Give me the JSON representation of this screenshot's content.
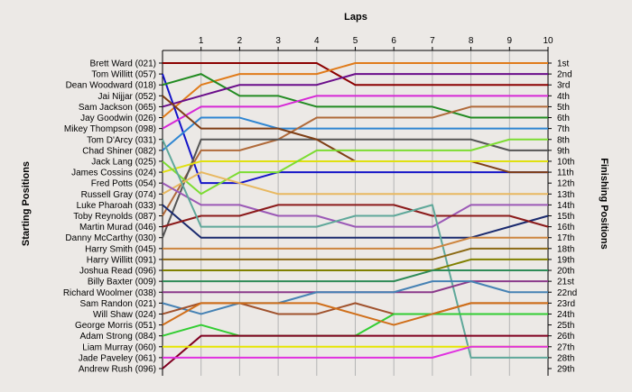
{
  "chart_data": {
    "type": "line",
    "title": "Laps",
    "ylabel_left": "Starting Positions",
    "ylabel_right": "Finishing Positions",
    "x": [
      0,
      1,
      2,
      3,
      4,
      5,
      6,
      7,
      8,
      9,
      10
    ],
    "x_tick_labels": [
      "1",
      "2",
      "3",
      "4",
      "5",
      "6",
      "7",
      "8",
      "9",
      "10"
    ],
    "xlim": [
      0,
      10
    ],
    "ylim": [
      1,
      29
    ],
    "grid": true,
    "starting_labels": [
      "Brett Ward (021)",
      "Tom Willitt (057)",
      "Dean Woodward (018)",
      "Jai Nijjar (052)",
      "Sam Jackson (065)",
      "Jay Goodwin (026)",
      "Mikey Thompson (098)",
      "Tom D'Arcy (031)",
      "Chad Shiner (082)",
      "Jack Lang (025)",
      "James Cossins (024)",
      "Fred Potts (054)",
      "Russell Gray (074)",
      "Luke Pharoah (033)",
      "Toby Reynolds (087)",
      "Martin Murad (046)",
      "Danny McCarthy (030)",
      "Harry Smith (045)",
      "Harry Willitt (091)",
      "Joshua Read (096)",
      "Billy Baxter (009)",
      "Richard Woolmer (038)",
      "Sam Randon (021)",
      "Will Shaw (024)",
      "George Morris (051)",
      "Adam Strong (084)",
      "Liam Murray (060)",
      "Jade Paveley (061)",
      "Andrew Rush (096)"
    ],
    "finishing_labels": [
      "1st",
      "2nd",
      "3rd",
      "4th",
      "5th",
      "6th",
      "7th",
      "8th",
      "9th",
      "10th",
      "11th",
      "12th",
      "13th",
      "14th",
      "15th",
      "16th",
      "17th",
      "18th",
      "19th",
      "20th",
      "21st",
      "22nd",
      "23rd",
      "24th",
      "25th",
      "26th",
      "27th",
      "28th",
      "29th"
    ],
    "series": [
      {
        "color": "#8b0000",
        "values": [
          1,
          1,
          1,
          1,
          1,
          3,
          3,
          3,
          3,
          3,
          3
        ]
      },
      {
        "color": "#e07b1a",
        "values": [
          6,
          3,
          2,
          2,
          2,
          1,
          1,
          1,
          1,
          1,
          1
        ]
      },
      {
        "color": "#1414c8",
        "values": [
          2,
          12,
          12,
          11,
          11,
          11,
          11,
          11,
          11,
          11,
          11
        ]
      },
      {
        "color": "#228b22",
        "values": [
          3,
          2,
          4,
          4,
          5,
          5,
          5,
          5,
          6,
          6,
          6
        ]
      },
      {
        "color": "#6a0d8a",
        "values": [
          5,
          4,
          3,
          3,
          3,
          2,
          2,
          2,
          2,
          2,
          2
        ]
      },
      {
        "color": "#d628d6",
        "values": [
          7,
          5,
          5,
          5,
          4,
          4,
          4,
          4,
          4,
          4,
          4
        ]
      },
      {
        "color": "#2f86d2",
        "values": [
          9,
          6,
          6,
          7,
          7,
          7,
          7,
          7,
          7,
          7,
          7
        ]
      },
      {
        "color": "#b06a3a",
        "values": [
          15,
          9,
          9,
          8,
          6,
          6,
          6,
          6,
          5,
          5,
          5
        ]
      },
      {
        "color": "#555555",
        "values": [
          17,
          8,
          8,
          8,
          8,
          8,
          8,
          8,
          8,
          9,
          9
        ]
      },
      {
        "color": "#7f3f16",
        "values": [
          4,
          7,
          7,
          7,
          8,
          10,
          10,
          10,
          10,
          11,
          11
        ]
      },
      {
        "color": "#e0e010",
        "values": [
          11,
          10,
          10,
          10,
          10,
          10,
          10,
          10,
          10,
          10,
          10
        ]
      },
      {
        "color": "#7cdc32",
        "values": [
          10,
          13,
          11,
          11,
          9,
          9,
          9,
          9,
          9,
          8,
          8
        ]
      },
      {
        "color": "#e8b860",
        "values": [
          13,
          11,
          12,
          13,
          13,
          13,
          13,
          13,
          13,
          13,
          13
        ]
      },
      {
        "color": "#1a2a6e",
        "values": [
          14,
          17,
          17,
          17,
          17,
          17,
          17,
          17,
          17,
          16,
          15
        ]
      },
      {
        "color": "#9b59b6",
        "values": [
          12,
          14,
          14,
          15,
          15,
          16,
          16,
          16,
          14,
          14,
          14
        ]
      },
      {
        "color": "#8b1a1a",
        "values": [
          16,
          15,
          15,
          14,
          14,
          14,
          14,
          15,
          15,
          15,
          16
        ]
      },
      {
        "color": "#5fa89a",
        "values": [
          8,
          16,
          16,
          16,
          16,
          15,
          15,
          14,
          28,
          28,
          28
        ]
      },
      {
        "color": "#cd853f",
        "values": [
          18,
          18,
          18,
          18,
          18,
          18,
          18,
          18,
          17,
          17,
          17
        ]
      },
      {
        "color": "#8b6914",
        "values": [
          19,
          19,
          19,
          19,
          19,
          19,
          19,
          19,
          18,
          18,
          18
        ]
      },
      {
        "color": "#808000",
        "values": [
          20,
          20,
          20,
          20,
          20,
          20,
          20,
          20,
          19,
          19,
          19
        ]
      },
      {
        "color": "#2e8b57",
        "values": [
          21,
          21,
          21,
          21,
          21,
          21,
          21,
          20,
          20,
          20,
          20
        ]
      },
      {
        "color": "#8b3a8b",
        "values": [
          22,
          22,
          22,
          22,
          22,
          22,
          22,
          22,
          21,
          21,
          21
        ]
      },
      {
        "color": "#4682b4",
        "values": [
          23,
          24,
          23,
          23,
          22,
          22,
          22,
          21,
          21,
          22,
          22
        ]
      },
      {
        "color": "#a0522d",
        "values": [
          24,
          23,
          23,
          24,
          24,
          23,
          24,
          24,
          23,
          23,
          23
        ]
      },
      {
        "color": "#32cd32",
        "values": [
          26,
          25,
          26,
          26,
          26,
          26,
          24,
          24,
          24,
          24,
          24
        ]
      },
      {
        "color": "#d06f1a",
        "values": [
          25,
          23,
          23,
          23,
          23,
          24,
          25,
          24,
          23,
          23,
          23
        ]
      },
      {
        "color": "#800020",
        "values": [
          29,
          26,
          26,
          26,
          26,
          26,
          26,
          26,
          26,
          26,
          26
        ]
      },
      {
        "color": "#e6e600",
        "values": [
          27,
          27,
          27,
          27,
          27,
          27,
          27,
          27,
          27,
          27,
          27
        ]
      },
      {
        "color": "#e030e0",
        "values": [
          28,
          28,
          28,
          28,
          28,
          28,
          28,
          28,
          27,
          27,
          27
        ]
      }
    ]
  }
}
